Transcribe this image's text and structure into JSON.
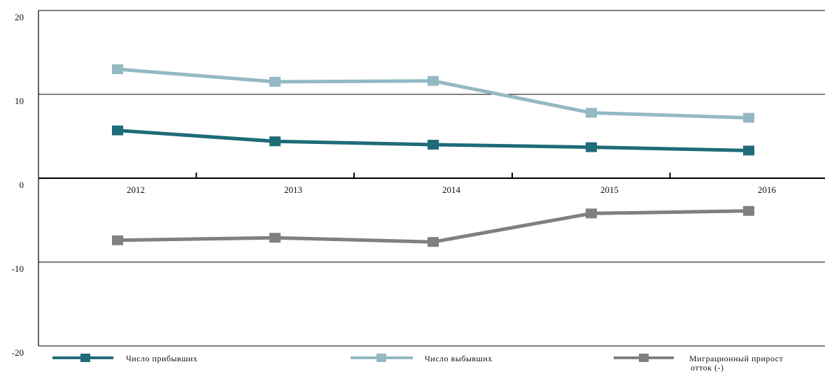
{
  "chart_data": {
    "type": "line",
    "categories": [
      "2012",
      "2013",
      "2014",
      "2015",
      "2016"
    ],
    "ylim": [
      -20,
      20
    ],
    "yticks": [
      "20",
      "10",
      "0",
      "-10",
      "-20"
    ],
    "grid": true,
    "legend_position": "bottom",
    "series": [
      {
        "name": "Число прибывших",
        "values": [
          5.7,
          4.4,
          4.0,
          3.7,
          3.3
        ],
        "color": "#1f6b78"
      },
      {
        "name": "Число выбывших",
        "values": [
          13.0,
          11.5,
          11.6,
          7.8,
          7.2
        ],
        "color": "#93b9c3"
      },
      {
        "name_lines": [
          "Миграционный прирост",
          "отток (-)"
        ],
        "values": [
          -7.4,
          -7.1,
          -7.6,
          -4.2,
          -3.9
        ],
        "color": "#808080"
      }
    ]
  }
}
